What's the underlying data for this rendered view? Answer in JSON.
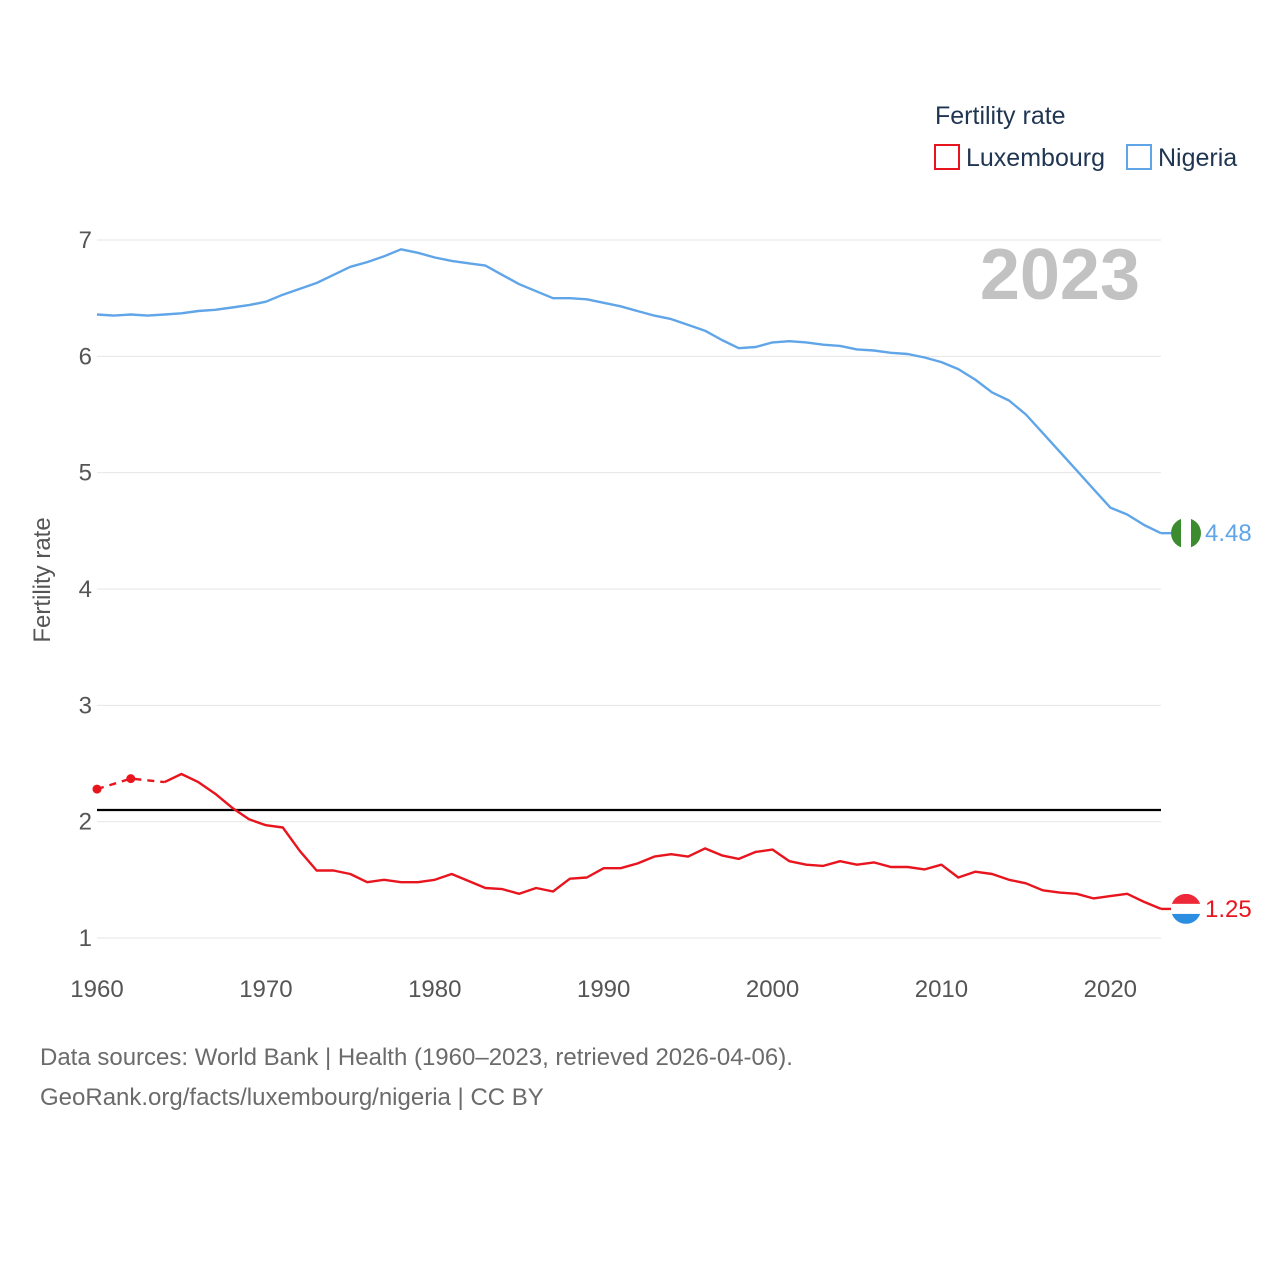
{
  "chart_data": {
    "type": "line",
    "title": "",
    "ylabel": "Fertility rate",
    "xlabel": "",
    "xlim": [
      1960,
      2023
    ],
    "ylim": [
      1,
      7
    ],
    "x_ticks": [
      1960,
      1970,
      1980,
      1990,
      2000,
      2010,
      2020
    ],
    "y_ticks": [
      1,
      2,
      3,
      4,
      5,
      6,
      7
    ],
    "year_display": "2023",
    "reference_line": {
      "y": 2.1,
      "color": "#000000"
    },
    "legend": {
      "title": "Fertility rate",
      "position": "top-right"
    },
    "x": [
      1960,
      1961,
      1962,
      1963,
      1964,
      1965,
      1966,
      1967,
      1968,
      1969,
      1970,
      1971,
      1972,
      1973,
      1974,
      1975,
      1976,
      1977,
      1978,
      1979,
      1980,
      1981,
      1982,
      1983,
      1984,
      1985,
      1986,
      1987,
      1988,
      1989,
      1990,
      1991,
      1992,
      1993,
      1994,
      1995,
      1996,
      1997,
      1998,
      1999,
      2000,
      2001,
      2002,
      2003,
      2004,
      2005,
      2006,
      2007,
      2008,
      2009,
      2010,
      2011,
      2012,
      2013,
      2014,
      2015,
      2016,
      2017,
      2018,
      2019,
      2020,
      2021,
      2022,
      2023
    ],
    "series": [
      {
        "name": "Luxembourg",
        "color": "#e8141e",
        "end_label": "1.25",
        "flag": "luxembourg-flag",
        "dashed_segment": {
          "years": [
            1960,
            1962,
            1964
          ],
          "values": [
            2.28,
            2.37,
            2.34
          ]
        },
        "marker_points": {
          "years": [
            1960,
            1962
          ],
          "values": [
            2.28,
            2.37
          ]
        },
        "values": [
          null,
          null,
          null,
          null,
          2.34,
          2.41,
          2.34,
          2.24,
          2.12,
          2.02,
          1.97,
          1.95,
          1.75,
          1.58,
          1.58,
          1.55,
          1.48,
          1.5,
          1.48,
          1.48,
          1.5,
          1.55,
          1.49,
          1.43,
          1.42,
          1.38,
          1.43,
          1.4,
          1.51,
          1.52,
          1.6,
          1.6,
          1.64,
          1.7,
          1.72,
          1.7,
          1.77,
          1.71,
          1.68,
          1.74,
          1.76,
          1.66,
          1.63,
          1.62,
          1.66,
          1.63,
          1.65,
          1.61,
          1.61,
          1.59,
          1.63,
          1.52,
          1.57,
          1.55,
          1.5,
          1.47,
          1.41,
          1.39,
          1.38,
          1.34,
          1.36,
          1.38,
          1.31,
          1.25
        ]
      },
      {
        "name": "Nigeria",
        "color": "#5fa5e8",
        "end_label": "4.48",
        "flag": "nigeria-flag",
        "values": [
          6.36,
          6.35,
          6.36,
          6.35,
          6.36,
          6.37,
          6.39,
          6.4,
          6.42,
          6.44,
          6.47,
          6.53,
          6.58,
          6.63,
          6.7,
          6.77,
          6.81,
          6.86,
          6.92,
          6.89,
          6.85,
          6.82,
          6.8,
          6.78,
          6.7,
          6.62,
          6.56,
          6.5,
          6.5,
          6.49,
          6.46,
          6.43,
          6.39,
          6.35,
          6.32,
          6.27,
          6.22,
          6.14,
          6.07,
          6.08,
          6.12,
          6.13,
          6.12,
          6.1,
          6.09,
          6.06,
          6.05,
          6.03,
          6.02,
          5.99,
          5.95,
          5.89,
          5.8,
          5.69,
          5.62,
          5.5,
          5.34,
          5.18,
          5.02,
          4.86,
          4.7,
          4.64,
          4.55,
          4.48
        ]
      }
    ]
  },
  "footer": {
    "line1": "Data sources: World Bank | Health (1960–2023, retrieved 2026-04-06).",
    "line2": "GeoRank.org/facts/luxembourg/nigeria | CC BY"
  }
}
